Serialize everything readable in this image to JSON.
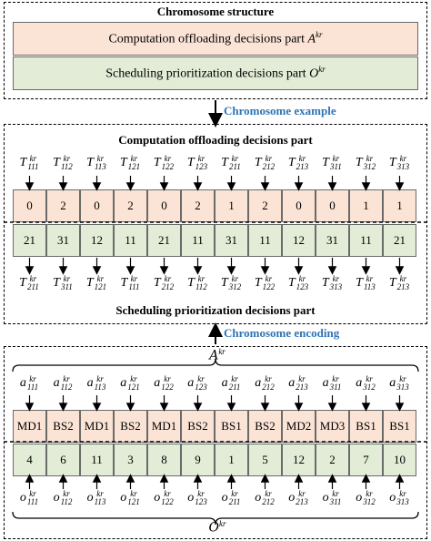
{
  "structure": {
    "title": "Chromosome structure",
    "offloading_label": "Computation offloading decisions part",
    "offloading_symbol": "A",
    "scheduling_label": "Scheduling prioritization decisions part",
    "scheduling_symbol": "O",
    "superscript": "kr"
  },
  "example": {
    "arrow_label": "Chromosome example",
    "top_title": "Computation offloading decisions part",
    "bottom_title": "Scheduling prioritization decisions part",
    "top_symbols": [
      {
        "base": "T",
        "sub": "111"
      },
      {
        "base": "T",
        "sub": "112"
      },
      {
        "base": "T",
        "sub": "113"
      },
      {
        "base": "T",
        "sub": "121"
      },
      {
        "base": "T",
        "sub": "122"
      },
      {
        "base": "T",
        "sub": "123"
      },
      {
        "base": "T",
        "sub": "211"
      },
      {
        "base": "T",
        "sub": "212"
      },
      {
        "base": "T",
        "sub": "213"
      },
      {
        "base": "T",
        "sub": "311"
      },
      {
        "base": "T",
        "sub": "312"
      },
      {
        "base": "T",
        "sub": "313"
      }
    ],
    "offloading_values": [
      "0",
      "2",
      "0",
      "2",
      "0",
      "2",
      "1",
      "2",
      "0",
      "0",
      "1",
      "1"
    ],
    "scheduling_values": [
      "21",
      "31",
      "12",
      "11",
      "21",
      "11",
      "31",
      "11",
      "12",
      "31",
      "11",
      "21"
    ],
    "bottom_symbols": [
      {
        "base": "T",
        "sub": "211"
      },
      {
        "base": "T",
        "sub": "311"
      },
      {
        "base": "T",
        "sub": "121"
      },
      {
        "base": "T",
        "sub": "111"
      },
      {
        "base": "T",
        "sub": "212"
      },
      {
        "base": "T",
        "sub": "112"
      },
      {
        "base": "T",
        "sub": "312"
      },
      {
        "base": "T",
        "sub": "122"
      },
      {
        "base": "T",
        "sub": "123"
      },
      {
        "base": "T",
        "sub": "313"
      },
      {
        "base": "T",
        "sub": "113"
      },
      {
        "base": "T",
        "sub": "213"
      }
    ]
  },
  "encoding": {
    "arrow_label": "Chromosome encoding",
    "top_brace_symbol": "A",
    "bottom_brace_symbol": "O",
    "superscript": "kr",
    "top_symbols": [
      {
        "base": "a",
        "sub": "111"
      },
      {
        "base": "a",
        "sub": "112"
      },
      {
        "base": "a",
        "sub": "113"
      },
      {
        "base": "a",
        "sub": "121"
      },
      {
        "base": "a",
        "sub": "122"
      },
      {
        "base": "a",
        "sub": "123"
      },
      {
        "base": "a",
        "sub": "211"
      },
      {
        "base": "a",
        "sub": "212"
      },
      {
        "base": "a",
        "sub": "213"
      },
      {
        "base": "a",
        "sub": "311"
      },
      {
        "base": "a",
        "sub": "312"
      },
      {
        "base": "a",
        "sub": "313"
      }
    ],
    "offloading_values": [
      "MD1",
      "BS2",
      "MD1",
      "BS2",
      "MD1",
      "BS2",
      "BS1",
      "BS2",
      "MD2",
      "MD3",
      "BS1",
      "BS1"
    ],
    "scheduling_values": [
      "4",
      "6",
      "11",
      "3",
      "8",
      "9",
      "1",
      "5",
      "12",
      "2",
      "7",
      "10"
    ],
    "bottom_symbols": [
      {
        "base": "o",
        "sub": "111"
      },
      {
        "base": "o",
        "sub": "112"
      },
      {
        "base": "o",
        "sub": "113"
      },
      {
        "base": "o",
        "sub": "121"
      },
      {
        "base": "o",
        "sub": "122"
      },
      {
        "base": "o",
        "sub": "123"
      },
      {
        "base": "o",
        "sub": "211"
      },
      {
        "base": "o",
        "sub": "212"
      },
      {
        "base": "o",
        "sub": "213"
      },
      {
        "base": "o",
        "sub": "311"
      },
      {
        "base": "o",
        "sub": "312"
      },
      {
        "base": "o",
        "sub": "313"
      }
    ]
  }
}
